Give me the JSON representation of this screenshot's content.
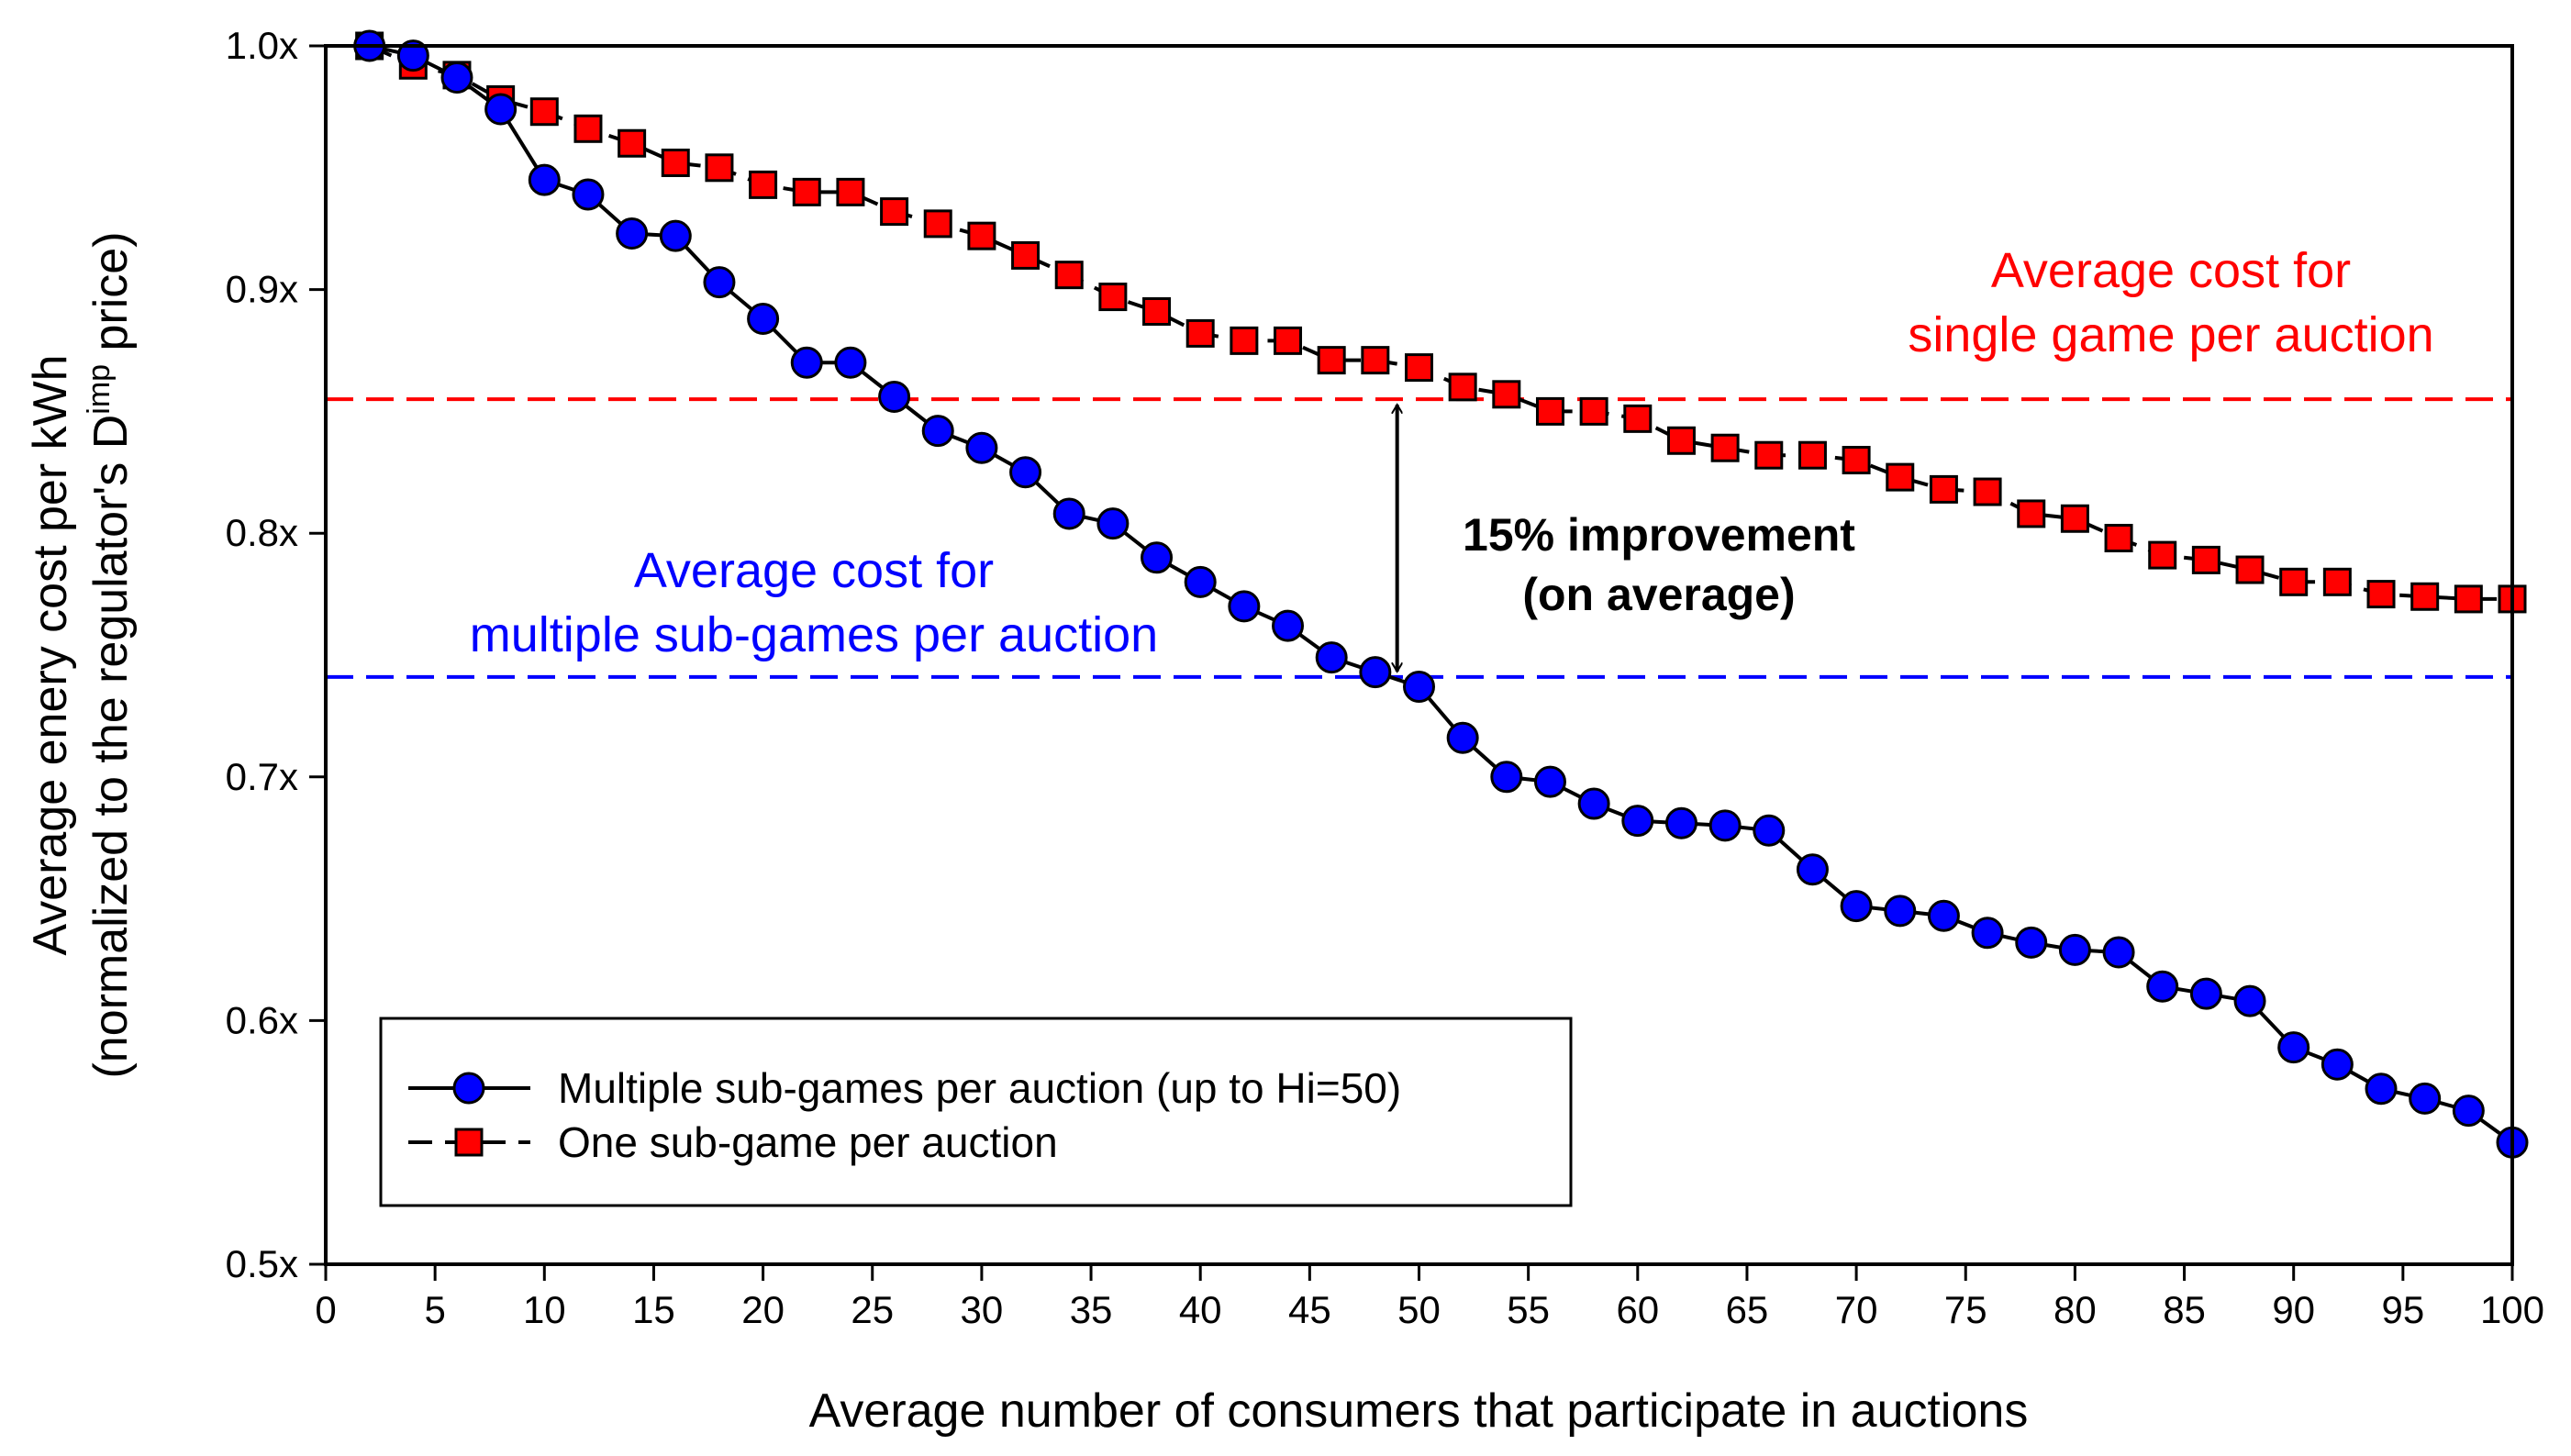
{
  "chart_data": {
    "type": "line",
    "xlabel": "Average number of consumers that participate in auctions",
    "ylabel_line1": "Average enery cost per kWh",
    "ylabel_line2_prefix": "(normalized to the regulator's D",
    "ylabel_line2_sup": "imp",
    "ylabel_line2_suffix": " price)",
    "xlim": [
      0,
      100
    ],
    "ylim": [
      0.5,
      1.0
    ],
    "x_ticks": [
      "0",
      "5",
      "10",
      "15",
      "20",
      "25",
      "30",
      "35",
      "40",
      "45",
      "50",
      "55",
      "60",
      "65",
      "70",
      "75",
      "80",
      "85",
      "90",
      "95",
      "100"
    ],
    "y_ticks": [
      "0.5x",
      "0.6x",
      "0.7x",
      "0.8x",
      "0.9x",
      "1.0x"
    ],
    "x": [
      2,
      4,
      6,
      8,
      10,
      12,
      14,
      16,
      18,
      20,
      22,
      24,
      26,
      28,
      30,
      32,
      34,
      36,
      38,
      40,
      42,
      44,
      46,
      48,
      50,
      52,
      54,
      56,
      58,
      60,
      62,
      64,
      66,
      68,
      70,
      72,
      74,
      76,
      78,
      80,
      82,
      84,
      86,
      88,
      90,
      92,
      94,
      96,
      98,
      100
    ],
    "series": [
      {
        "name": "Multiple sub-games per auction (up to Hi=50)",
        "color": "#0000ff",
        "marker": "circle",
        "line": "solid",
        "values": [
          1.0,
          0.996,
          0.987,
          0.974,
          0.945,
          0.939,
          0.923,
          0.922,
          0.903,
          0.888,
          0.87,
          0.87,
          0.856,
          0.842,
          0.835,
          0.825,
          0.808,
          0.804,
          0.79,
          0.78,
          0.77,
          0.762,
          0.749,
          0.743,
          0.737,
          0.716,
          0.7,
          0.698,
          0.689,
          0.682,
          0.681,
          0.68,
          0.678,
          0.662,
          0.647,
          0.645,
          0.643,
          0.636,
          0.632,
          0.629,
          0.628,
          0.614,
          0.611,
          0.608,
          0.589,
          0.582,
          0.572,
          0.568,
          0.563,
          0.55
        ]
      },
      {
        "name": "One sub-game per auction",
        "color": "#ff0000",
        "marker": "square",
        "line": "dashed",
        "values": [
          1.0,
          0.992,
          0.988,
          0.978,
          0.973,
          0.966,
          0.96,
          0.952,
          0.95,
          0.943,
          0.94,
          0.94,
          0.932,
          0.927,
          0.922,
          0.914,
          0.906,
          0.897,
          0.891,
          0.882,
          0.879,
          0.879,
          0.871,
          0.871,
          0.868,
          0.86,
          0.857,
          0.85,
          0.85,
          0.847,
          0.838,
          0.835,
          0.832,
          0.832,
          0.83,
          0.823,
          0.818,
          0.817,
          0.808,
          0.806,
          0.798,
          0.791,
          0.789,
          0.785,
          0.78,
          0.78,
          0.775,
          0.774,
          0.773,
          0.773
        ]
      }
    ],
    "reference_lines": [
      {
        "name": "average-single-game",
        "y": 0.855,
        "color": "#ff0000",
        "label_line1": "Average cost for",
        "label_line2": "single game per auction"
      },
      {
        "name": "average-multiple-subgames",
        "y": 0.741,
        "color": "#0000ff",
        "label_line1": "Average cost for",
        "label_line2": "multiple sub-games per auction"
      }
    ],
    "annotation": {
      "x": 49,
      "y_top": 0.855,
      "y_bottom": 0.741,
      "line1": "15% improvement",
      "line2": "(on average)"
    },
    "legend_position": "bottom-left"
  }
}
